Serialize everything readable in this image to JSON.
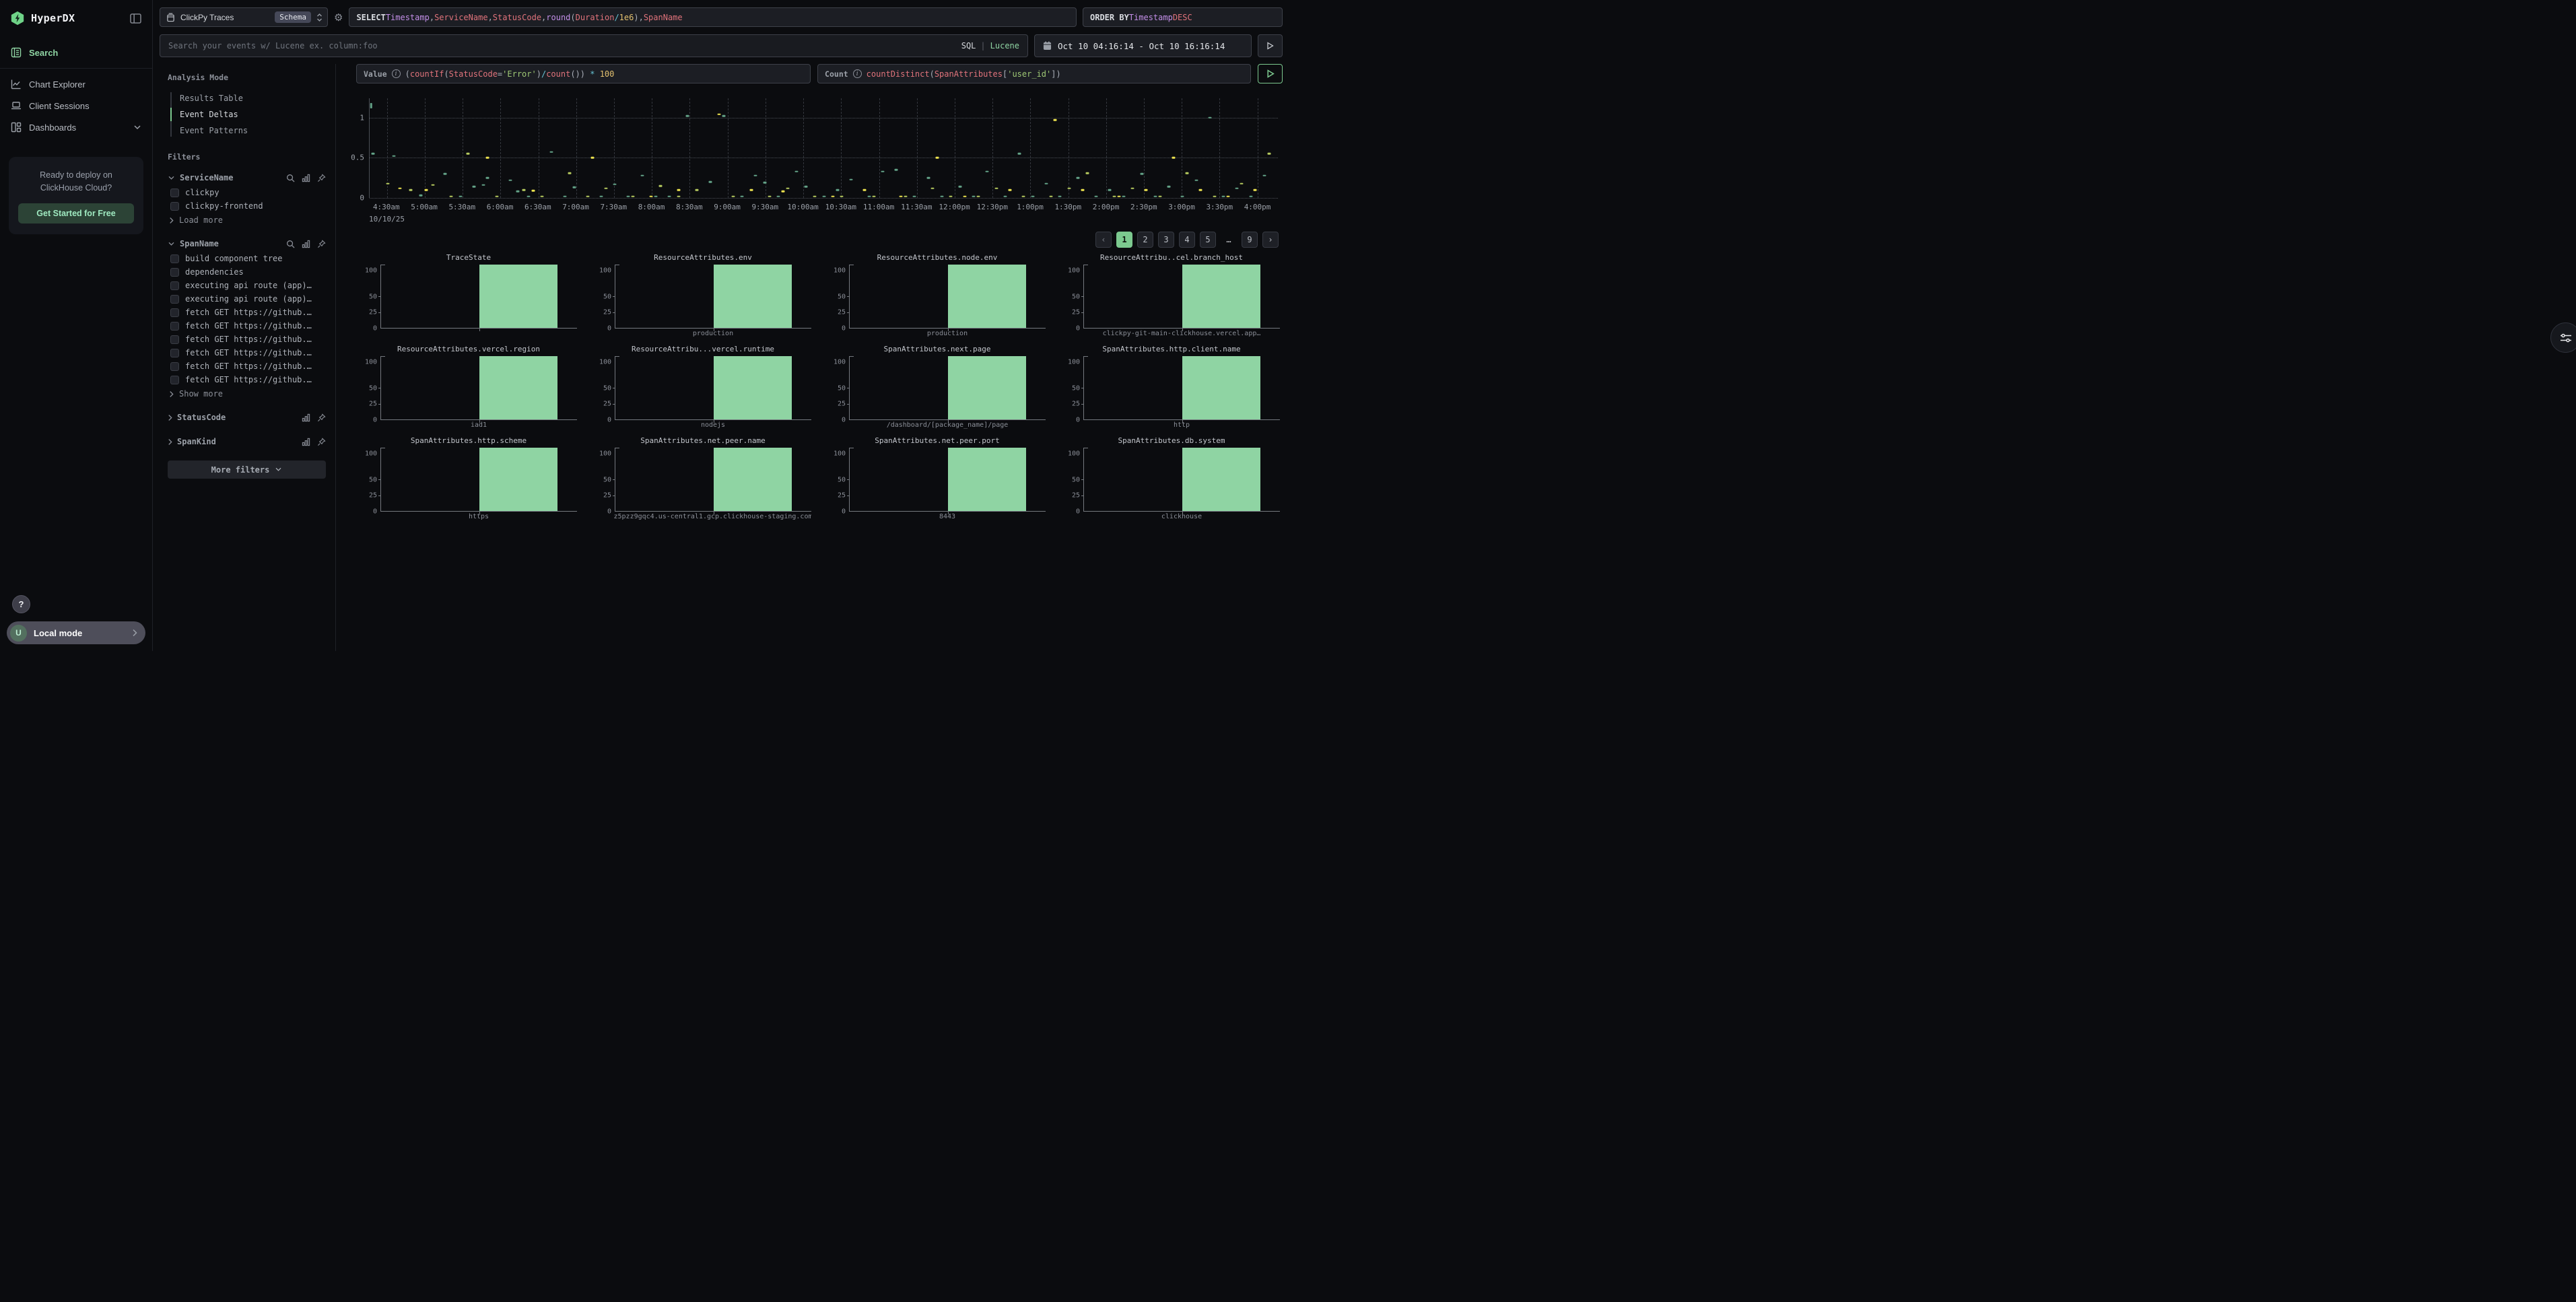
{
  "app": {
    "brand": "HyperDX"
  },
  "sidebar": {
    "nav": [
      {
        "label": "Search",
        "active": true
      },
      {
        "label": "Chart Explorer",
        "active": false
      },
      {
        "label": "Client Sessions",
        "active": false
      },
      {
        "label": "Dashboards",
        "active": false
      }
    ],
    "promo": {
      "line1": "Ready to deploy on",
      "line2": "ClickHouse Cloud?",
      "cta": "Get Started for Free"
    },
    "help_label": "?",
    "account": {
      "avatar": "U",
      "label": "Local mode"
    }
  },
  "topbar": {
    "source": {
      "name": "ClickPy Traces",
      "badge": "Schema"
    },
    "select_tokens": [
      {
        "t": "SELECT ",
        "c": "kw"
      },
      {
        "t": "Timestamp",
        "c": "purple"
      },
      {
        "t": ", ",
        "c": "gray"
      },
      {
        "t": "ServiceName",
        "c": "red"
      },
      {
        "t": ", ",
        "c": "gray"
      },
      {
        "t": "StatusCode",
        "c": "red"
      },
      {
        "t": ", ",
        "c": "gray"
      },
      {
        "t": "round",
        "c": "purple"
      },
      {
        "t": "(",
        "c": "gray"
      },
      {
        "t": "Duration",
        "c": "red"
      },
      {
        "t": " / ",
        "c": "cyan"
      },
      {
        "t": "1e6",
        "c": "yellow"
      },
      {
        "t": ")",
        "c": "gray"
      },
      {
        "t": ", ",
        "c": "gray"
      },
      {
        "t": "SpanName",
        "c": "red"
      }
    ],
    "orderby_tokens": [
      {
        "t": "ORDER BY ",
        "c": "kw"
      },
      {
        "t": "Timestamp",
        "c": "purple"
      },
      {
        "t": " DESC",
        "c": "red"
      }
    ],
    "search": {
      "placeholder": "Search your events w/ Lucene ex. column:foo",
      "mode_sql": "SQL",
      "mode_sep": "|",
      "mode_lucene": "Lucene"
    },
    "daterange": "Oct 10 04:16:14 - Oct 10 16:16:14"
  },
  "metrics": {
    "value": {
      "label": "Value",
      "tokens": [
        {
          "t": "(",
          "c": "gray"
        },
        {
          "t": "countIf",
          "c": "red"
        },
        {
          "t": "(",
          "c": "gray"
        },
        {
          "t": "StatusCode",
          "c": "red"
        },
        {
          "t": "=",
          "c": "gray"
        },
        {
          "t": "'Error'",
          "c": "green"
        },
        {
          "t": ")",
          "c": "gray"
        },
        {
          "t": "/",
          "c": "cyan"
        },
        {
          "t": "count",
          "c": "red"
        },
        {
          "t": "()",
          "c": "gray"
        },
        {
          "t": ")",
          "c": "gray"
        },
        {
          "t": " * ",
          "c": "cyan"
        },
        {
          "t": "100",
          "c": "yellow"
        }
      ]
    },
    "count": {
      "label": "Count",
      "tokens": [
        {
          "t": "countDistinct",
          "c": "red"
        },
        {
          "t": "(",
          "c": "gray"
        },
        {
          "t": "SpanAttributes",
          "c": "red"
        },
        {
          "t": "[",
          "c": "gray"
        },
        {
          "t": "'user_id'",
          "c": "green"
        },
        {
          "t": "]",
          "c": "gray"
        },
        {
          "t": ")",
          "c": "gray"
        }
      ]
    }
  },
  "filters_panel": {
    "analysis_mode": {
      "title": "Analysis Mode",
      "items": [
        {
          "label": "Results Table",
          "active": false
        },
        {
          "label": "Event Deltas",
          "active": true
        },
        {
          "label": "Event Patterns",
          "active": false
        }
      ]
    },
    "filters_title": "Filters",
    "groups": [
      {
        "name": "ServiceName",
        "expanded": true,
        "searchable": true,
        "values": [
          "clickpy",
          "clickpy-frontend"
        ],
        "more_label": "Load more"
      },
      {
        "name": "SpanName",
        "expanded": true,
        "searchable": true,
        "values": [
          "build component tree",
          "dependencies",
          "executing api route (app)…",
          "executing api route (app)…",
          "fetch GET https://github.…",
          "fetch GET https://github.…",
          "fetch GET https://github.…",
          "fetch GET https://github.…",
          "fetch GET https://github.…",
          "fetch GET https://github.…"
        ],
        "more_label": "Show more"
      },
      {
        "name": "StatusCode",
        "expanded": false,
        "searchable": false,
        "values": [],
        "more_label": ""
      },
      {
        "name": "SpanKind",
        "expanded": false,
        "searchable": false,
        "values": [],
        "more_label": ""
      }
    ],
    "more_filters_label": "More filters"
  },
  "chart_data": [
    {
      "type": "scatter",
      "title": "Event Deltas over time",
      "xlabel": "",
      "ylabel": "",
      "x_range": [
        "Oct 10 04:16:14",
        "Oct 10 16:16:14"
      ],
      "x_ticks": [
        "4:30am",
        "5:00am",
        "5:30am",
        "6:00am",
        "6:30am",
        "7:00am",
        "7:30am",
        "8:00am",
        "8:30am",
        "9:00am",
        "9:30am",
        "10:00am",
        "10:30am",
        "11:00am",
        "11:30am",
        "12:00pm",
        "12:30pm",
        "1:00pm",
        "1:30pm",
        "2:00pm",
        "2:30pm",
        "3:00pm",
        "3:30pm",
        "4:00pm"
      ],
      "x_date_label": "10/10/25",
      "y_ticks": [
        0,
        0.5,
        1
      ],
      "ylim": [
        0,
        1.24
      ],
      "grid": true,
      "legend": false,
      "series": [
        {
          "name": "series-teal",
          "color": "#63a287",
          "points": [
            [
              0.004,
              0.55
            ],
            [
              0.027,
              0.52
            ],
            [
              0.056,
              0.03
            ],
            [
              0.083,
              0.3
            ],
            [
              0.1,
              0.02
            ],
            [
              0.115,
              0.14
            ],
            [
              0.125,
              0.16
            ],
            [
              0.13,
              0.25
            ],
            [
              0.155,
              0.22
            ],
            [
              0.163,
              0.08
            ],
            [
              0.175,
              0.02
            ],
            [
              0.2,
              0.57
            ],
            [
              0.215,
              0.02
            ],
            [
              0.225,
              0.13
            ],
            [
              0.255,
              0.02
            ],
            [
              0.27,
              0.17
            ],
            [
              0.285,
              0.02
            ],
            [
              0.3,
              0.28
            ],
            [
              0.315,
              0.02
            ],
            [
              0.33,
              0.02
            ],
            [
              0.35,
              1.02
            ],
            [
              0.375,
              0.2
            ],
            [
              0.39,
              1.02
            ],
            [
              0.41,
              0.02
            ],
            [
              0.425,
              0.28
            ],
            [
              0.435,
              0.19
            ],
            [
              0.45,
              0.02
            ],
            [
              0.47,
              0.33
            ],
            [
              0.48,
              0.14
            ],
            [
              0.5,
              0.02
            ],
            [
              0.515,
              0.1
            ],
            [
              0.53,
              0.23
            ],
            [
              0.55,
              0.02
            ],
            [
              0.565,
              0.33
            ],
            [
              0.58,
              0.35
            ],
            [
              0.6,
              0.02
            ],
            [
              0.615,
              0.25
            ],
            [
              0.63,
              0.02
            ],
            [
              0.65,
              0.14
            ],
            [
              0.665,
              0.02
            ],
            [
              0.68,
              0.33
            ],
            [
              0.7,
              0.02
            ],
            [
              0.715,
              0.55
            ],
            [
              0.73,
              0.02
            ],
            [
              0.745,
              0.18
            ],
            [
              0.76,
              0.02
            ],
            [
              0.78,
              0.25
            ],
            [
              0.8,
              0.02
            ],
            [
              0.815,
              0.1
            ],
            [
              0.83,
              0.02
            ],
            [
              0.85,
              0.3
            ],
            [
              0.865,
              0.02
            ],
            [
              0.88,
              0.14
            ],
            [
              0.895,
              0.02
            ],
            [
              0.91,
              0.22
            ],
            [
              0.925,
              1.0
            ],
            [
              0.94,
              0.02
            ],
            [
              0.955,
              0.12
            ],
            [
              0.97,
              0.02
            ],
            [
              0.985,
              0.28
            ]
          ]
        },
        {
          "name": "series-yellowgreen",
          "color": "#b5c95e",
          "points": [
            [
              0.02,
              0.18
            ],
            [
              0.045,
              0.1
            ],
            [
              0.07,
              0.16
            ],
            [
              0.09,
              0.02
            ],
            [
              0.108,
              0.55
            ],
            [
              0.14,
              0.02
            ],
            [
              0.17,
              0.1
            ],
            [
              0.19,
              0.02
            ],
            [
              0.22,
              0.31
            ],
            [
              0.24,
              0.02
            ],
            [
              0.26,
              0.12
            ],
            [
              0.29,
              0.02
            ],
            [
              0.32,
              0.15
            ],
            [
              0.34,
              0.02
            ],
            [
              0.36,
              0.1
            ],
            [
              0.4,
              0.02
            ],
            [
              0.44,
              0.02
            ],
            [
              0.46,
              0.12
            ],
            [
              0.49,
              0.02
            ],
            [
              0.52,
              0.02
            ],
            [
              0.555,
              0.02
            ],
            [
              0.59,
              0.02
            ],
            [
              0.62,
              0.12
            ],
            [
              0.64,
              0.02
            ],
            [
              0.67,
              0.02
            ],
            [
              0.69,
              0.12
            ],
            [
              0.72,
              0.02
            ],
            [
              0.75,
              0.02
            ],
            [
              0.77,
              0.12
            ],
            [
              0.79,
              0.31
            ],
            [
              0.82,
              0.02
            ],
            [
              0.84,
              0.12
            ],
            [
              0.87,
              0.02
            ],
            [
              0.9,
              0.31
            ],
            [
              0.93,
              0.02
            ],
            [
              0.96,
              0.18
            ],
            [
              0.99,
              0.55
            ]
          ]
        },
        {
          "name": "series-yellow",
          "color": "#ece24e",
          "points": [
            [
              0.033,
              0.12
            ],
            [
              0.062,
              0.1
            ],
            [
              0.13,
              0.5
            ],
            [
              0.18,
              0.09
            ],
            [
              0.245,
              0.5
            ],
            [
              0.31,
              0.02
            ],
            [
              0.34,
              0.1
            ],
            [
              0.385,
              1.04
            ],
            [
              0.42,
              0.1
            ],
            [
              0.455,
              0.08
            ],
            [
              0.51,
              0.02
            ],
            [
              0.545,
              0.1
            ],
            [
              0.585,
              0.02
            ],
            [
              0.625,
              0.5
            ],
            [
              0.655,
              0.02
            ],
            [
              0.705,
              0.1
            ],
            [
              0.755,
              0.97
            ],
            [
              0.785,
              0.1
            ],
            [
              0.825,
              0.02
            ],
            [
              0.855,
              0.1
            ],
            [
              0.885,
              0.5
            ],
            [
              0.915,
              0.1
            ],
            [
              0.945,
              0.02
            ],
            [
              0.975,
              0.1
            ]
          ]
        }
      ]
    },
    {
      "type": "bar",
      "shared_y_ticks": [
        100,
        50,
        25,
        0
      ],
      "ylim": [
        0,
        115
      ],
      "bar_color": "#8fd4a3",
      "subcharts": [
        {
          "title": "TraceState",
          "categories": [
            ""
          ],
          "values": [
            100
          ]
        },
        {
          "title": "ResourceAttributes.env",
          "categories": [
            "production"
          ],
          "values": [
            100
          ]
        },
        {
          "title": "ResourceAttributes.node.env",
          "categories": [
            "production"
          ],
          "values": [
            100
          ]
        },
        {
          "title": "ResourceAttribu..cel.branch_host",
          "categories": [
            "clickpy-git-main-clickhouse.vercel.app…"
          ],
          "values": [
            100
          ]
        },
        {
          "title": "ResourceAttributes.vercel.region",
          "categories": [
            "iad1"
          ],
          "values": [
            100
          ]
        },
        {
          "title": "ResourceAttribu...vercel.runtime",
          "categories": [
            "nodejs"
          ],
          "values": [
            100
          ]
        },
        {
          "title": "SpanAttributes.next.page",
          "categories": [
            "/dashboard/[package_name]/page"
          ],
          "values": [
            100
          ]
        },
        {
          "title": "SpanAttributes.http.client.name",
          "categories": [
            "http"
          ],
          "values": [
            100
          ]
        },
        {
          "title": "SpanAttributes.http.scheme",
          "categories": [
            "https"
          ],
          "values": [
            100
          ]
        },
        {
          "title": "SpanAttributes.net.peer.name",
          "categories": [
            "z5pzz9gqc4.us-central1.gcp.clickhouse-staging.com"
          ],
          "values": [
            100
          ]
        },
        {
          "title": "SpanAttributes.net.peer.port",
          "categories": [
            "8443"
          ],
          "values": [
            100
          ]
        },
        {
          "title": "SpanAttributes.db.system",
          "categories": [
            "clickhouse"
          ],
          "values": [
            100
          ]
        }
      ]
    }
  ],
  "pagination": {
    "prev": "‹",
    "pages": [
      "1",
      "2",
      "3",
      "4",
      "5",
      "…",
      "9"
    ],
    "active": "1",
    "next": "›"
  },
  "colors": {
    "accent_green": "#8fd4a3",
    "active_page": "#7cc98f",
    "bar_fill": "#8fd4a3"
  }
}
